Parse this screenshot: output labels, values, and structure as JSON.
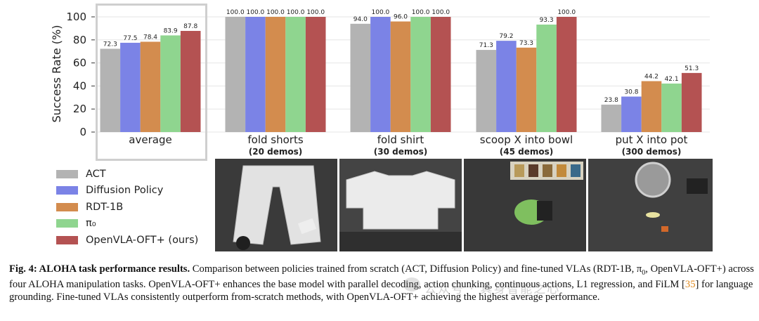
{
  "chart_data": {
    "type": "bar",
    "ylabel": "Success Rate (%)",
    "ylim": [
      0,
      100
    ],
    "yticks": [
      0,
      20,
      40,
      60,
      80,
      100
    ],
    "grid": true,
    "categories": [
      {
        "name": "average",
        "sub": ""
      },
      {
        "name": "fold shorts",
        "sub": "(20 demos)"
      },
      {
        "name": "fold shirt",
        "sub": "(30 demos)"
      },
      {
        "name": "scoop X into bowl",
        "sub": "(45 demos)"
      },
      {
        "name": "put X into pot",
        "sub": "(300 demos)"
      }
    ],
    "series": [
      {
        "name": "ACT",
        "color": "#b3b3b3",
        "values": [
          72.3,
          100.0,
          94.0,
          71.3,
          23.8
        ]
      },
      {
        "name": "Diffusion Policy",
        "color": "#7b83e6",
        "values": [
          77.5,
          100.0,
          100.0,
          79.2,
          30.8
        ]
      },
      {
        "name": "RDT-1B",
        "color": "#d38c4e",
        "values": [
          78.4,
          100.0,
          96.0,
          73.3,
          44.2
        ]
      },
      {
        "name": "π₀",
        "color": "#8fd58f",
        "values": [
          83.9,
          100.0,
          100.0,
          93.3,
          42.1
        ]
      },
      {
        "name": "OpenVLA-OFT+ (ours)",
        "color": "#b45252",
        "values": [
          87.8,
          100.0,
          100.0,
          100.0,
          51.3
        ]
      }
    ]
  },
  "caption": {
    "label": "Fig. 4: ALOHA task performance results.",
    "text1": " Comparison between policies trained from scratch (ACT, Diffusion Policy) and fine-tuned VLAs (RDT-1B, π",
    "sub0": "0",
    "text2": ", OpenVLA-OFT+) across four ALOHA manipulation tasks. OpenVLA-OFT+ enhances the base model with parallel decoding, action chunking, continuous actions, L1 regression, and FiLM [",
    "ref": "35",
    "text3": "] for language grounding. Fine-tuned VLAs consistently outperform from-scratch methods, with OpenVLA-OFT+ achieving the highest average performance."
  },
  "watermark": "公众号 · 具身智能之心"
}
